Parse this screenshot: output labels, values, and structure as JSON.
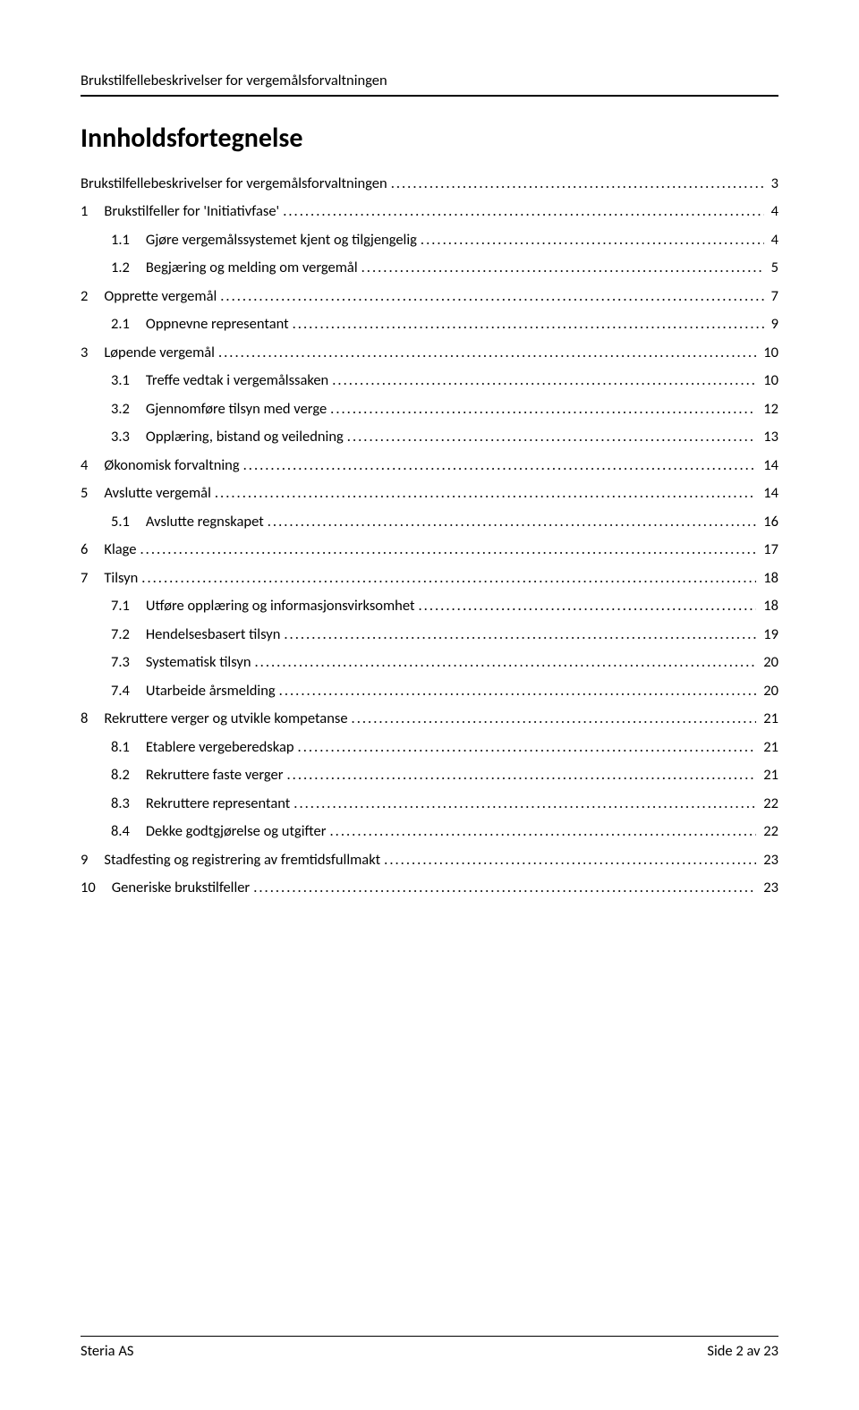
{
  "running_header": "Brukstilfellebeskrivelser for vergemålsforvaltningen",
  "toc_title": "Innholdsfortegnelse",
  "toc": [
    {
      "num": "",
      "label": "Brukstilfellebeskrivelser for vergemålsforvaltningen",
      "page": "3",
      "indent": 0
    },
    {
      "num": "1",
      "label": "Brukstilfeller for 'Initiativfase'",
      "page": "4",
      "indent": 0
    },
    {
      "num": "1.1",
      "label": "Gjøre vergemålssystemet kjent og tilgjengelig",
      "page": "4",
      "indent": 1
    },
    {
      "num": "1.2",
      "label": "Begjæring og melding om vergemål",
      "page": "5",
      "indent": 1
    },
    {
      "num": "2",
      "label": "Opprette vergemål",
      "page": "7",
      "indent": 0
    },
    {
      "num": "2.1",
      "label": "Oppnevne representant",
      "page": "9",
      "indent": 1
    },
    {
      "num": "3",
      "label": "Løpende vergemål",
      "page": "10",
      "indent": 0
    },
    {
      "num": "3.1",
      "label": "Treffe vedtak i vergemålssaken",
      "page": "10",
      "indent": 1
    },
    {
      "num": "3.2",
      "label": "Gjennomføre tilsyn med verge",
      "page": "12",
      "indent": 1
    },
    {
      "num": "3.3",
      "label": "Opplæring, bistand og veiledning",
      "page": "13",
      "indent": 1
    },
    {
      "num": "4",
      "label": "Økonomisk forvaltning",
      "page": "14",
      "indent": 0
    },
    {
      "num": "5",
      "label": "Avslutte vergemål",
      "page": "14",
      "indent": 0
    },
    {
      "num": "5.1",
      "label": "Avslutte regnskapet",
      "page": "16",
      "indent": 1
    },
    {
      "num": "6",
      "label": "Klage",
      "page": "17",
      "indent": 0
    },
    {
      "num": "7",
      "label": "Tilsyn",
      "page": "18",
      "indent": 0
    },
    {
      "num": "7.1",
      "label": "Utføre opplæring og informasjonsvirksomhet",
      "page": "18",
      "indent": 1
    },
    {
      "num": "7.2",
      "label": "Hendelsesbasert tilsyn",
      "page": "19",
      "indent": 1
    },
    {
      "num": "7.3",
      "label": "Systematisk tilsyn",
      "page": "20",
      "indent": 1
    },
    {
      "num": "7.4",
      "label": "Utarbeide årsmelding",
      "page": "20",
      "indent": 1
    },
    {
      "num": "8",
      "label": "Rekruttere verger og utvikle kompetanse",
      "page": "21",
      "indent": 0
    },
    {
      "num": "8.1",
      "label": "Etablere vergeberedskap",
      "page": "21",
      "indent": 1
    },
    {
      "num": "8.2",
      "label": "Rekruttere faste verger",
      "page": "21",
      "indent": 1
    },
    {
      "num": "8.3",
      "label": "Rekruttere representant",
      "page": "22",
      "indent": 1
    },
    {
      "num": "8.4",
      "label": "Dekke godtgjørelse og utgifter",
      "page": "22",
      "indent": 1
    },
    {
      "num": "9",
      "label": "Stadfesting og registrering av fremtidsfullmakt",
      "page": "23",
      "indent": 0
    },
    {
      "num": "10",
      "label": "Generiske brukstilfeller",
      "page": "23",
      "indent": 0
    }
  ],
  "footer_left": "Steria AS",
  "footer_right": "Side 2 av 23"
}
